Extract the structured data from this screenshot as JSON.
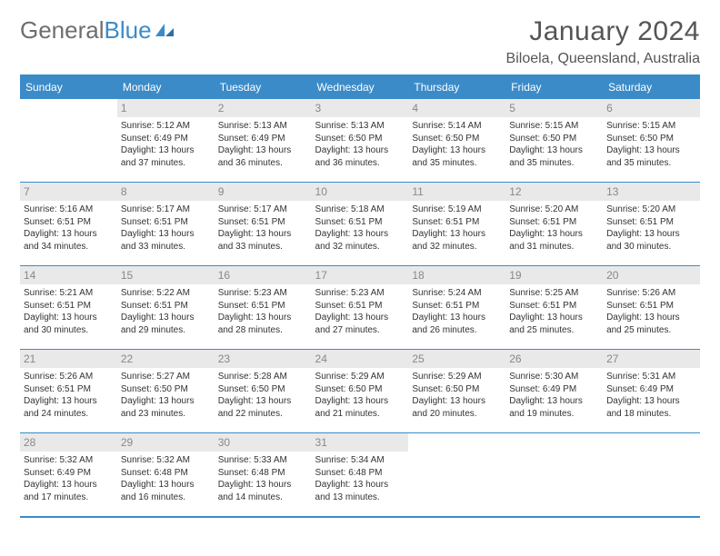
{
  "brand": {
    "part1": "General",
    "part2": "Blue"
  },
  "title": "January 2024",
  "location": "Biloela, Queensland, Australia",
  "colors": {
    "accent": "#3b8bc9",
    "header_text": "#ffffff",
    "daynum_bg": "#e9e9e9",
    "daynum_text": "#888888",
    "body_text": "#333333",
    "title_text": "#555555",
    "logo_gray": "#6e6e6e",
    "background": "#ffffff"
  },
  "weekdays": [
    "Sunday",
    "Monday",
    "Tuesday",
    "Wednesday",
    "Thursday",
    "Friday",
    "Saturday"
  ],
  "weeks": [
    [
      null,
      {
        "d": "1",
        "sr": "Sunrise: 5:12 AM",
        "ss": "Sunset: 6:49 PM",
        "dl1": "Daylight: 13 hours",
        "dl2": "and 37 minutes."
      },
      {
        "d": "2",
        "sr": "Sunrise: 5:13 AM",
        "ss": "Sunset: 6:49 PM",
        "dl1": "Daylight: 13 hours",
        "dl2": "and 36 minutes."
      },
      {
        "d": "3",
        "sr": "Sunrise: 5:13 AM",
        "ss": "Sunset: 6:50 PM",
        "dl1": "Daylight: 13 hours",
        "dl2": "and 36 minutes."
      },
      {
        "d": "4",
        "sr": "Sunrise: 5:14 AM",
        "ss": "Sunset: 6:50 PM",
        "dl1": "Daylight: 13 hours",
        "dl2": "and 35 minutes."
      },
      {
        "d": "5",
        "sr": "Sunrise: 5:15 AM",
        "ss": "Sunset: 6:50 PM",
        "dl1": "Daylight: 13 hours",
        "dl2": "and 35 minutes."
      },
      {
        "d": "6",
        "sr": "Sunrise: 5:15 AM",
        "ss": "Sunset: 6:50 PM",
        "dl1": "Daylight: 13 hours",
        "dl2": "and 35 minutes."
      }
    ],
    [
      {
        "d": "7",
        "sr": "Sunrise: 5:16 AM",
        "ss": "Sunset: 6:51 PM",
        "dl1": "Daylight: 13 hours",
        "dl2": "and 34 minutes."
      },
      {
        "d": "8",
        "sr": "Sunrise: 5:17 AM",
        "ss": "Sunset: 6:51 PM",
        "dl1": "Daylight: 13 hours",
        "dl2": "and 33 minutes."
      },
      {
        "d": "9",
        "sr": "Sunrise: 5:17 AM",
        "ss": "Sunset: 6:51 PM",
        "dl1": "Daylight: 13 hours",
        "dl2": "and 33 minutes."
      },
      {
        "d": "10",
        "sr": "Sunrise: 5:18 AM",
        "ss": "Sunset: 6:51 PM",
        "dl1": "Daylight: 13 hours",
        "dl2": "and 32 minutes."
      },
      {
        "d": "11",
        "sr": "Sunrise: 5:19 AM",
        "ss": "Sunset: 6:51 PM",
        "dl1": "Daylight: 13 hours",
        "dl2": "and 32 minutes."
      },
      {
        "d": "12",
        "sr": "Sunrise: 5:20 AM",
        "ss": "Sunset: 6:51 PM",
        "dl1": "Daylight: 13 hours",
        "dl2": "and 31 minutes."
      },
      {
        "d": "13",
        "sr": "Sunrise: 5:20 AM",
        "ss": "Sunset: 6:51 PM",
        "dl1": "Daylight: 13 hours",
        "dl2": "and 30 minutes."
      }
    ],
    [
      {
        "d": "14",
        "sr": "Sunrise: 5:21 AM",
        "ss": "Sunset: 6:51 PM",
        "dl1": "Daylight: 13 hours",
        "dl2": "and 30 minutes."
      },
      {
        "d": "15",
        "sr": "Sunrise: 5:22 AM",
        "ss": "Sunset: 6:51 PM",
        "dl1": "Daylight: 13 hours",
        "dl2": "and 29 minutes."
      },
      {
        "d": "16",
        "sr": "Sunrise: 5:23 AM",
        "ss": "Sunset: 6:51 PM",
        "dl1": "Daylight: 13 hours",
        "dl2": "and 28 minutes."
      },
      {
        "d": "17",
        "sr": "Sunrise: 5:23 AM",
        "ss": "Sunset: 6:51 PM",
        "dl1": "Daylight: 13 hours",
        "dl2": "and 27 minutes."
      },
      {
        "d": "18",
        "sr": "Sunrise: 5:24 AM",
        "ss": "Sunset: 6:51 PM",
        "dl1": "Daylight: 13 hours",
        "dl2": "and 26 minutes."
      },
      {
        "d": "19",
        "sr": "Sunrise: 5:25 AM",
        "ss": "Sunset: 6:51 PM",
        "dl1": "Daylight: 13 hours",
        "dl2": "and 25 minutes."
      },
      {
        "d": "20",
        "sr": "Sunrise: 5:26 AM",
        "ss": "Sunset: 6:51 PM",
        "dl1": "Daylight: 13 hours",
        "dl2": "and 25 minutes."
      }
    ],
    [
      {
        "d": "21",
        "sr": "Sunrise: 5:26 AM",
        "ss": "Sunset: 6:51 PM",
        "dl1": "Daylight: 13 hours",
        "dl2": "and 24 minutes."
      },
      {
        "d": "22",
        "sr": "Sunrise: 5:27 AM",
        "ss": "Sunset: 6:50 PM",
        "dl1": "Daylight: 13 hours",
        "dl2": "and 23 minutes."
      },
      {
        "d": "23",
        "sr": "Sunrise: 5:28 AM",
        "ss": "Sunset: 6:50 PM",
        "dl1": "Daylight: 13 hours",
        "dl2": "and 22 minutes."
      },
      {
        "d": "24",
        "sr": "Sunrise: 5:29 AM",
        "ss": "Sunset: 6:50 PM",
        "dl1": "Daylight: 13 hours",
        "dl2": "and 21 minutes."
      },
      {
        "d": "25",
        "sr": "Sunrise: 5:29 AM",
        "ss": "Sunset: 6:50 PM",
        "dl1": "Daylight: 13 hours",
        "dl2": "and 20 minutes."
      },
      {
        "d": "26",
        "sr": "Sunrise: 5:30 AM",
        "ss": "Sunset: 6:49 PM",
        "dl1": "Daylight: 13 hours",
        "dl2": "and 19 minutes."
      },
      {
        "d": "27",
        "sr": "Sunrise: 5:31 AM",
        "ss": "Sunset: 6:49 PM",
        "dl1": "Daylight: 13 hours",
        "dl2": "and 18 minutes."
      }
    ],
    [
      {
        "d": "28",
        "sr": "Sunrise: 5:32 AM",
        "ss": "Sunset: 6:49 PM",
        "dl1": "Daylight: 13 hours",
        "dl2": "and 17 minutes."
      },
      {
        "d": "29",
        "sr": "Sunrise: 5:32 AM",
        "ss": "Sunset: 6:48 PM",
        "dl1": "Daylight: 13 hours",
        "dl2": "and 16 minutes."
      },
      {
        "d": "30",
        "sr": "Sunrise: 5:33 AM",
        "ss": "Sunset: 6:48 PM",
        "dl1": "Daylight: 13 hours",
        "dl2": "and 14 minutes."
      },
      {
        "d": "31",
        "sr": "Sunrise: 5:34 AM",
        "ss": "Sunset: 6:48 PM",
        "dl1": "Daylight: 13 hours",
        "dl2": "and 13 minutes."
      },
      null,
      null,
      null
    ]
  ]
}
